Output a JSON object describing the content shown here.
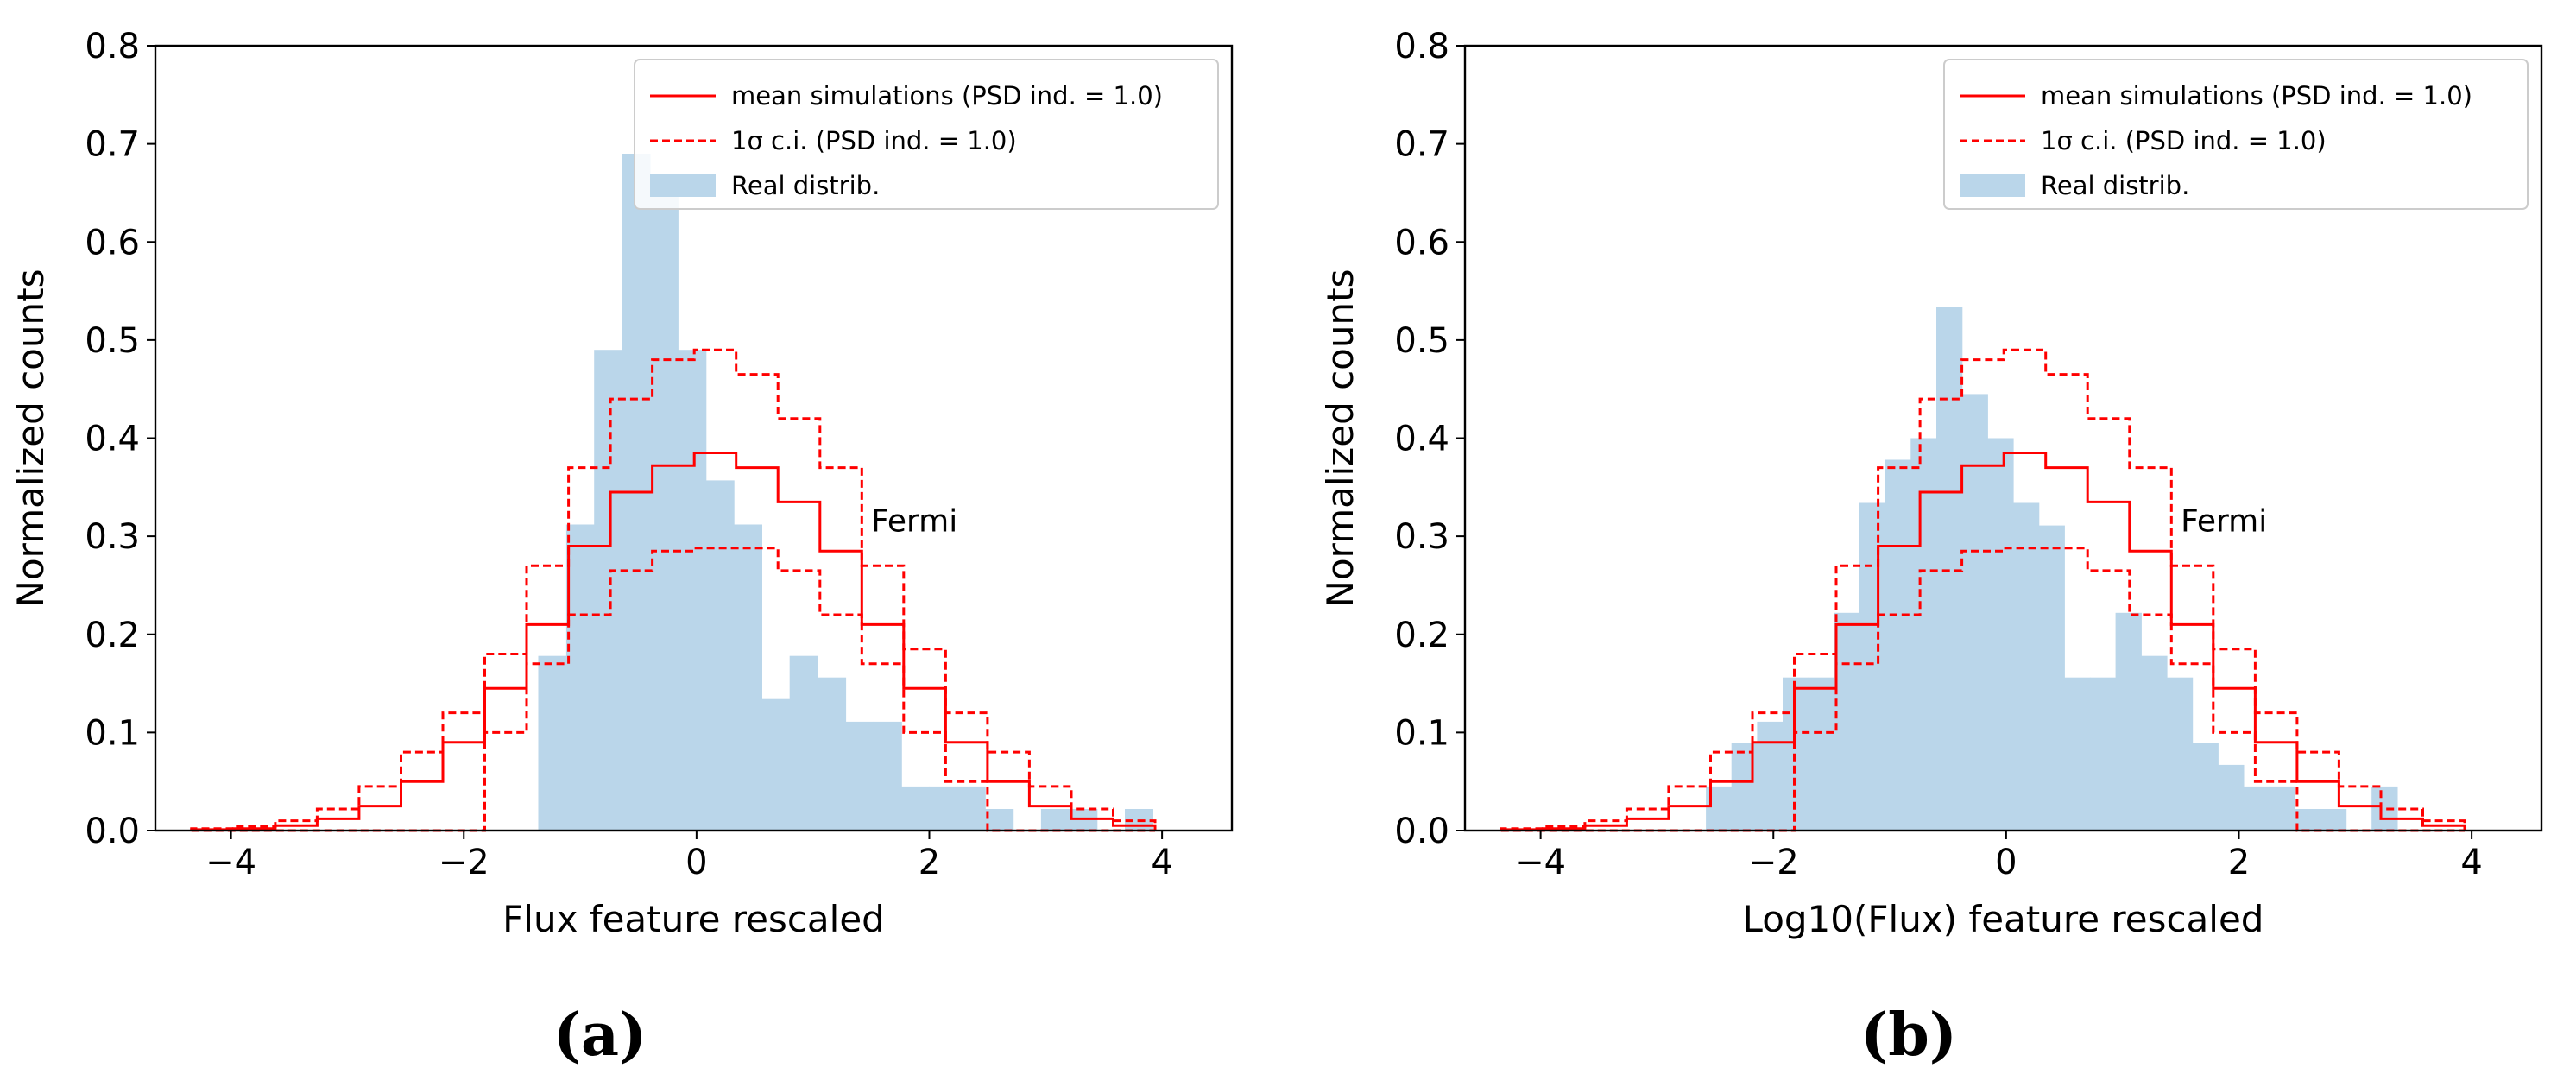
{
  "colors": {
    "hist_fill": "#bad6ea",
    "sim_line": "#ff0000",
    "axis": "#000000"
  },
  "chart_data": [
    {
      "type": "histogram",
      "panel_label": "(a)",
      "xlabel": "Flux feature rescaled",
      "ylabel": "Normalized counts",
      "xlim": [
        -4.65,
        4.6
      ],
      "ylim": [
        0,
        0.8
      ],
      "xticks": [
        -4,
        -2,
        0,
        2,
        4
      ],
      "yticks": [
        0.0,
        0.1,
        0.2,
        0.3,
        0.4,
        0.5,
        0.6,
        0.7,
        0.8
      ],
      "xtick_labels": [
        "−4",
        "−2",
        "0",
        "2",
        "4"
      ],
      "ytick_labels": [
        "0.0",
        "0.1",
        "0.2",
        "0.3",
        "0.4",
        "0.5",
        "0.6",
        "0.7",
        "0.8"
      ],
      "annotation": {
        "text": "Fermi",
        "x": 1.5,
        "y": 0.305
      },
      "legend": {
        "position": "top-right",
        "entries": [
          {
            "label": "mean simulations (PSD ind. = 1.0)",
            "style": "solid"
          },
          {
            "label": "1σ c.i. (PSD ind. = 1.0)",
            "style": "dashed"
          },
          {
            "label": "Real distrib.",
            "style": "patch"
          }
        ]
      },
      "real_distrib": {
        "bin_edges": [
          -1.36,
          -1.12,
          -0.88,
          -0.64,
          -0.4,
          -0.16,
          0.08,
          0.32,
          0.56,
          0.8,
          1.04,
          1.28,
          1.52,
          1.76,
          2.0,
          2.24,
          2.48,
          2.72,
          2.96,
          3.2,
          3.44,
          3.68,
          3.92
        ],
        "values": [
          0.178,
          0.312,
          0.49,
          0.69,
          0.668,
          0.49,
          0.357,
          0.312,
          0.134,
          0.178,
          0.156,
          0.111,
          0.111,
          0.045,
          0.045,
          0.045,
          0.022,
          0.0,
          0.022,
          0.022,
          0.0,
          0.022
        ]
      },
      "simulation_bin_edges": [
        -4.34,
        -3.98,
        -3.62,
        -3.26,
        -2.9,
        -2.54,
        -2.18,
        -1.82,
        -1.46,
        -1.1,
        -0.74,
        -0.38,
        -0.02,
        0.34,
        0.7,
        1.06,
        1.42,
        1.78,
        2.14,
        2.5,
        2.86,
        3.22,
        3.58,
        3.94
      ],
      "mean_simulations": [
        0.001,
        0.002,
        0.005,
        0.012,
        0.025,
        0.05,
        0.09,
        0.145,
        0.21,
        0.29,
        0.345,
        0.372,
        0.385,
        0.37,
        0.335,
        0.285,
        0.21,
        0.145,
        0.09,
        0.05,
        0.025,
        0.012,
        0.005
      ],
      "ci_upper": [
        0.002,
        0.004,
        0.01,
        0.022,
        0.045,
        0.08,
        0.12,
        0.18,
        0.27,
        0.37,
        0.44,
        0.48,
        0.49,
        0.465,
        0.42,
        0.37,
        0.27,
        0.185,
        0.12,
        0.08,
        0.045,
        0.022,
        0.01
      ],
      "ci_lower": [
        0.0,
        0.0,
        0.0,
        0.0,
        0.0,
        0.0,
        0.0,
        0.1,
        0.17,
        0.22,
        0.265,
        0.285,
        0.288,
        0.288,
        0.265,
        0.22,
        0.17,
        0.1,
        0.05,
        0.0,
        0.0,
        0.0,
        0.0
      ]
    },
    {
      "type": "histogram",
      "panel_label": "(b)",
      "xlabel": "Log10(Flux) feature rescaled",
      "ylabel": "Normalized counts",
      "xlim": [
        -4.65,
        4.6
      ],
      "ylim": [
        0,
        0.8
      ],
      "xticks": [
        -4,
        -2,
        0,
        2,
        4
      ],
      "yticks": [
        0.0,
        0.1,
        0.2,
        0.3,
        0.4,
        0.5,
        0.6,
        0.7,
        0.8
      ],
      "xtick_labels": [
        "−4",
        "−2",
        "0",
        "2",
        "4"
      ],
      "ytick_labels": [
        "0.0",
        "0.1",
        "0.2",
        "0.3",
        "0.4",
        "0.5",
        "0.6",
        "0.7",
        "0.8"
      ],
      "annotation": {
        "text": "Fermi",
        "x": 1.5,
        "y": 0.305
      },
      "legend": {
        "position": "top-right",
        "entries": [
          {
            "label": "mean simulations (PSD ind. = 1.0)",
            "style": "solid"
          },
          {
            "label": "1σ c.i. (PSD ind. = 1.0)",
            "style": "dashed"
          },
          {
            "label": "Real distrib.",
            "style": "patch"
          }
        ]
      },
      "real_distrib": {
        "bin_edges": [
          -2.58,
          -2.36,
          -2.14,
          -1.92,
          -1.7,
          -1.48,
          -1.26,
          -1.04,
          -0.82,
          -0.6,
          -0.38,
          -0.16,
          0.06,
          0.28,
          0.5,
          0.72,
          0.94,
          1.16,
          1.38,
          1.6,
          1.82,
          2.04,
          2.26,
          2.48,
          2.7,
          2.92,
          3.14,
          3.36
        ],
        "values": [
          0.045,
          0.089,
          0.111,
          0.156,
          0.156,
          0.222,
          0.334,
          0.378,
          0.4,
          0.534,
          0.445,
          0.4,
          0.334,
          0.311,
          0.156,
          0.156,
          0.222,
          0.178,
          0.156,
          0.089,
          0.067,
          0.045,
          0.045,
          0.022,
          0.022,
          0.0,
          0.045
        ]
      },
      "simulation_bin_edges": [
        -4.34,
        -3.98,
        -3.62,
        -3.26,
        -2.9,
        -2.54,
        -2.18,
        -1.82,
        -1.46,
        -1.1,
        -0.74,
        -0.38,
        -0.02,
        0.34,
        0.7,
        1.06,
        1.42,
        1.78,
        2.14,
        2.5,
        2.86,
        3.22,
        3.58,
        3.94
      ],
      "mean_simulations": [
        0.001,
        0.002,
        0.005,
        0.012,
        0.025,
        0.05,
        0.09,
        0.145,
        0.21,
        0.29,
        0.345,
        0.372,
        0.385,
        0.37,
        0.335,
        0.285,
        0.21,
        0.145,
        0.09,
        0.05,
        0.025,
        0.012,
        0.005
      ],
      "ci_upper": [
        0.002,
        0.004,
        0.01,
        0.022,
        0.045,
        0.08,
        0.12,
        0.18,
        0.27,
        0.37,
        0.44,
        0.48,
        0.49,
        0.465,
        0.42,
        0.37,
        0.27,
        0.185,
        0.12,
        0.08,
        0.045,
        0.022,
        0.01
      ],
      "ci_lower": [
        0.0,
        0.0,
        0.0,
        0.0,
        0.0,
        0.0,
        0.0,
        0.1,
        0.17,
        0.22,
        0.265,
        0.285,
        0.288,
        0.288,
        0.265,
        0.22,
        0.17,
        0.1,
        0.05,
        0.0,
        0.0,
        0.0,
        0.0
      ]
    }
  ]
}
